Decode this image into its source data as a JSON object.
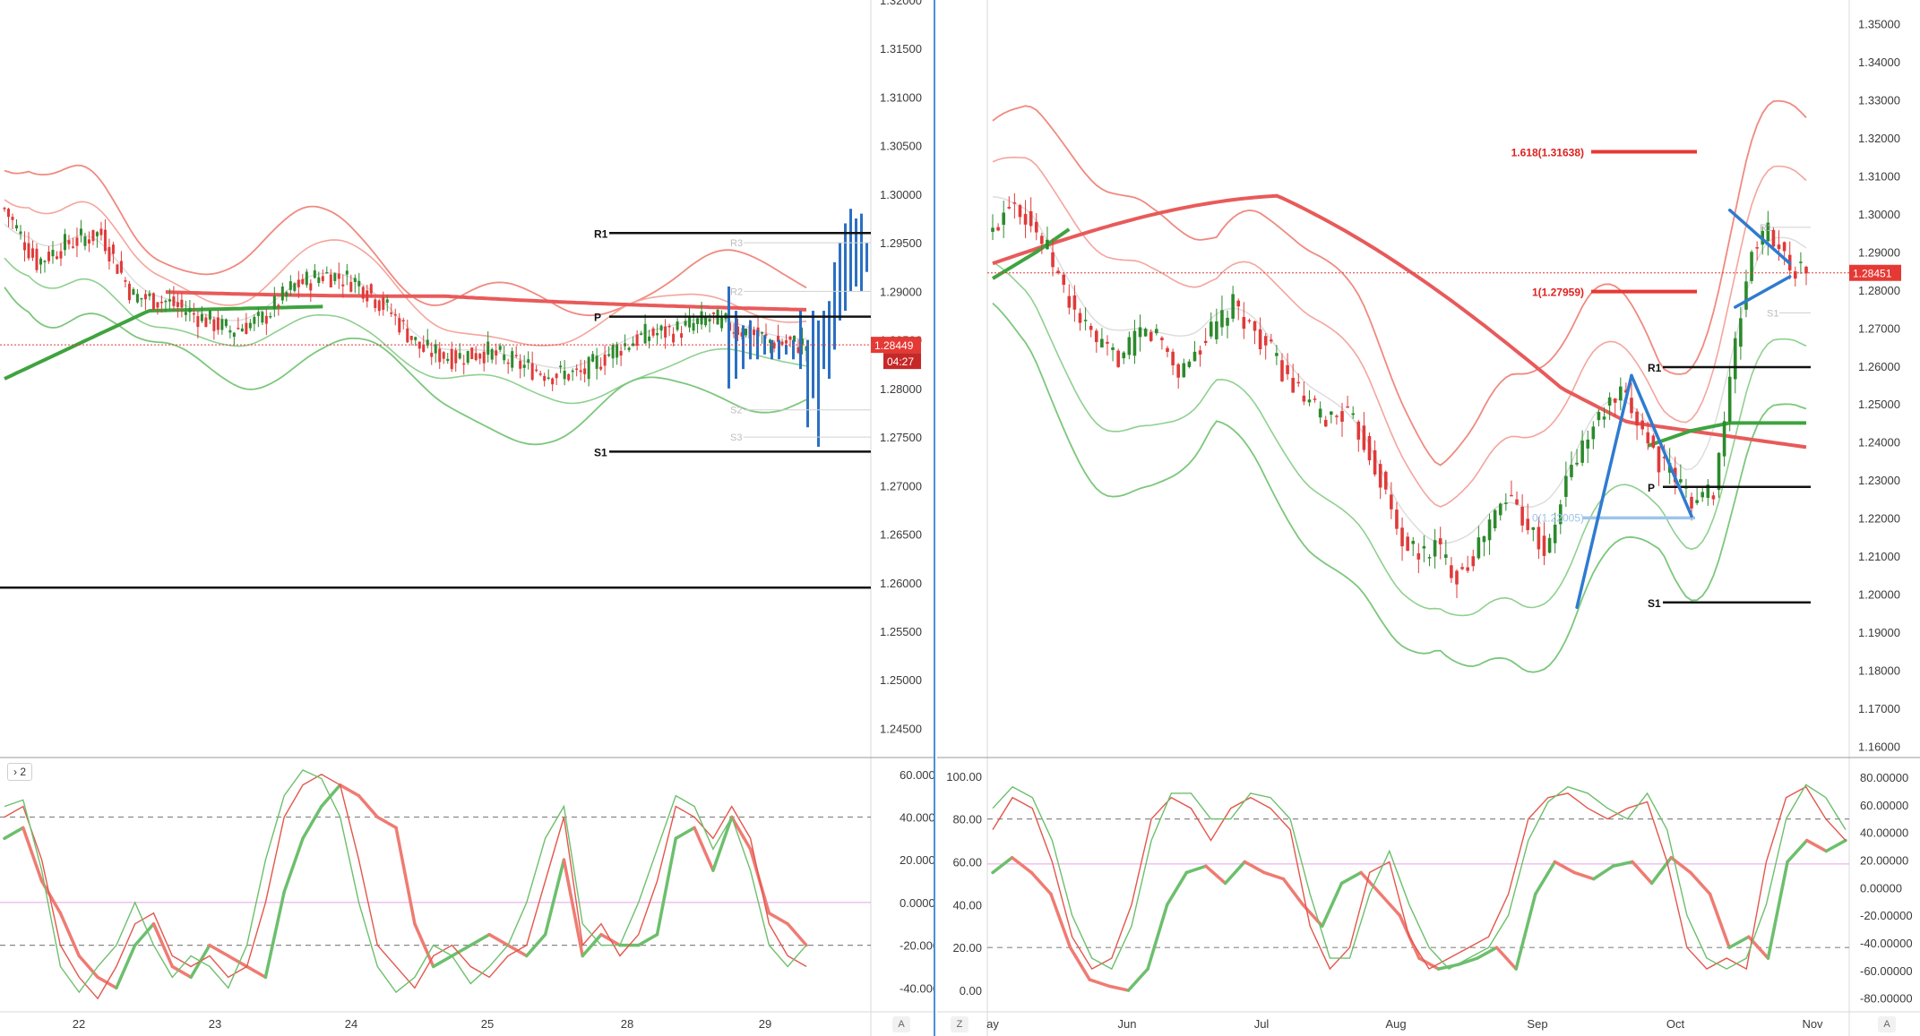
{
  "left_panel": {
    "price_axis": [
      "1.32000",
      "1.31500",
      "1.31000",
      "1.30500",
      "1.30000",
      "1.29500",
      "1.29000",
      "1.28500",
      "1.28000",
      "1.27500",
      "1.27000",
      "1.26500",
      "1.26000",
      "1.25500",
      "1.25000",
      "1.24500"
    ],
    "osc_axis": [
      "60.00000",
      "40.00000",
      "20.00000",
      "0.00000",
      "-20.00000",
      "-40.00000"
    ],
    "time_axis": [
      "22",
      "23",
      "24",
      "25",
      "28",
      "29"
    ],
    "current_price": "1.28449",
    "countdown": "04:27",
    "indicator_label": "2",
    "levels": {
      "r1": "R1",
      "p": "P",
      "s1": "S1",
      "r3": "R3",
      "r2": "R2",
      "s2": "S2",
      "s3": "S3"
    },
    "corner_button": "A"
  },
  "right_panel": {
    "price_axis": [
      "1.35000",
      "1.34000",
      "1.33000",
      "1.32000",
      "1.31000",
      "1.30000",
      "1.29000",
      "1.28000",
      "1.27000",
      "1.26000",
      "1.25000",
      "1.24000",
      "1.23000",
      "1.22000",
      "1.21000",
      "1.20000",
      "1.19000",
      "1.18000",
      "1.17000",
      "1.16000"
    ],
    "osc_left_axis": [
      "100.00",
      "80.00",
      "60.00",
      "40.00",
      "20.00",
      "0.00"
    ],
    "osc_right_axis": [
      "80.00000",
      "60.00000",
      "40.00000",
      "20.00000",
      "0.00000",
      "-20.00000",
      "-40.00000",
      "-60.00000",
      "-80.00000"
    ],
    "time_axis": [
      "ay",
      "Jun",
      "Jul",
      "Aug",
      "Sep",
      "Oct",
      "Nov"
    ],
    "current_price": "1.28451",
    "fib_labels": [
      "1.618(1.31638)",
      "1(1.27959)"
    ],
    "fib_low_label": "0(1.22005)",
    "levels": {
      "r1": "R1",
      "p": "P",
      "s1": "S1",
      "s1_faint": "S1",
      "r1_faint": "R1"
    },
    "corner_left": "Z",
    "corner_right": "A"
  },
  "chart_data": [
    {
      "type": "candlestick",
      "title": "",
      "x_labels": [
        "22",
        "23",
        "24",
        "25",
        "28",
        "29"
      ],
      "ylim": [
        1.242,
        1.32
      ],
      "current_price": 1.28449,
      "pivot_levels": {
        "R1": 1.296,
        "P": 1.2874,
        "S1": 1.2735
      },
      "extra_level": 1.2595,
      "close_path": [
        1.2985,
        1.293,
        1.295,
        1.296,
        1.2895,
        1.289,
        1.2875,
        1.286,
        1.287,
        1.2905,
        1.2918,
        1.291,
        1.288,
        1.284,
        1.2832,
        1.2838,
        1.2825,
        1.2815,
        1.2815,
        1.284,
        1.2855,
        1.286,
        1.2872,
        1.286,
        1.2848,
        1.2845
      ]
    },
    {
      "type": "line",
      "title": "",
      "ylim": [
        -47,
        62
      ],
      "series": [
        {
          "values": [
            30,
            35,
            10,
            -5,
            -25,
            -35,
            -40,
            -20,
            -10,
            -30,
            -35,
            -20,
            -25,
            -30,
            -35,
            5,
            30,
            45,
            55,
            50,
            40,
            35,
            -10,
            -30,
            -25,
            -20,
            -15,
            -20,
            -25,
            -15,
            20,
            -25,
            -15,
            -20,
            -20,
            -15,
            30,
            35,
            15,
            40,
            25,
            -5,
            -10,
            -20
          ]
        },
        {
          "values": [
            40,
            45,
            20,
            -20,
            -35,
            -45,
            -30,
            -10,
            -5,
            -25,
            -30,
            -25,
            -35,
            -30,
            0,
            40,
            55,
            60,
            55,
            20,
            -20,
            -30,
            -40,
            -25,
            -20,
            -30,
            -35,
            -25,
            -20,
            10,
            40,
            -20,
            -10,
            -25,
            -15,
            10,
            45,
            40,
            30,
            45,
            30,
            -10,
            -25,
            -30
          ]
        },
        {
          "values": [
            45,
            48,
            15,
            -30,
            -42,
            -30,
            -20,
            0,
            -20,
            -35,
            -25,
            -30,
            -40,
            -20,
            20,
            50,
            62,
            58,
            40,
            0,
            -30,
            -42,
            -35,
            -20,
            -25,
            -38,
            -30,
            -20,
            0,
            30,
            45,
            -10,
            -20,
            -20,
            0,
            25,
            50,
            45,
            25,
            40,
            15,
            -20,
            -30,
            -20
          ]
        }
      ]
    },
    {
      "type": "candlestick",
      "title": "",
      "x_labels": [
        "ay",
        "Jun",
        "Jul",
        "Aug",
        "Sep",
        "Oct",
        "Nov"
      ],
      "ylim": [
        1.157,
        1.353
      ],
      "current_price": 1.28451,
      "pivot_levels": {
        "R1": 1.2597,
        "P": 1.2282,
        "S1": 1.1978
      },
      "fib_levels": [
        {
          "label": "1.618(1.31638)",
          "value": 1.31638
        },
        {
          "label": "1(1.27959)",
          "value": 1.27959
        },
        {
          "label": "0(1.22005)",
          "value": 1.22005
        }
      ],
      "close_path": [
        1.295,
        1.305,
        1.298,
        1.29,
        1.278,
        1.27,
        1.264,
        1.262,
        1.269,
        1.268,
        1.258,
        1.264,
        1.27,
        1.276,
        1.27,
        1.264,
        1.256,
        1.25,
        1.246,
        1.248,
        1.241,
        1.23,
        1.215,
        1.21,
        1.213,
        1.205,
        1.21,
        1.22,
        1.226,
        1.218,
        1.21,
        1.23,
        1.24,
        1.248,
        1.252,
        1.245,
        1.235,
        1.23,
        1.224,
        1.228,
        1.26,
        1.29,
        1.296,
        1.287,
        1.2845
      ]
    },
    {
      "type": "line",
      "title": "",
      "ylim": [
        -5,
        102
      ],
      "series": [
        {
          "values": [
            55,
            62,
            55,
            45,
            20,
            5,
            2,
            0,
            10,
            40,
            55,
            58,
            50,
            60,
            55,
            52,
            40,
            30,
            50,
            55,
            45,
            35,
            15,
            10,
            12,
            15,
            20,
            10,
            45,
            60,
            55,
            52,
            58,
            60,
            50,
            62,
            55,
            45,
            20,
            25,
            15,
            60,
            70,
            65,
            70
          ]
        },
        {
          "values": [
            75,
            90,
            85,
            60,
            25,
            10,
            15,
            40,
            80,
            90,
            85,
            70,
            85,
            90,
            85,
            75,
            30,
            10,
            20,
            55,
            60,
            25,
            10,
            15,
            20,
            25,
            45,
            80,
            90,
            92,
            85,
            80,
            85,
            88,
            60,
            20,
            10,
            15,
            10,
            60,
            90,
            95,
            80,
            70
          ]
        },
        {
          "values": [
            85,
            95,
            90,
            70,
            35,
            15,
            10,
            30,
            70,
            92,
            92,
            80,
            80,
            92,
            90,
            80,
            45,
            15,
            15,
            45,
            65,
            40,
            20,
            10,
            15,
            20,
            35,
            70,
            88,
            95,
            92,
            85,
            80,
            92,
            75,
            35,
            15,
            10,
            15,
            40,
            80,
            96,
            90,
            75
          ]
        }
      ]
    }
  ]
}
